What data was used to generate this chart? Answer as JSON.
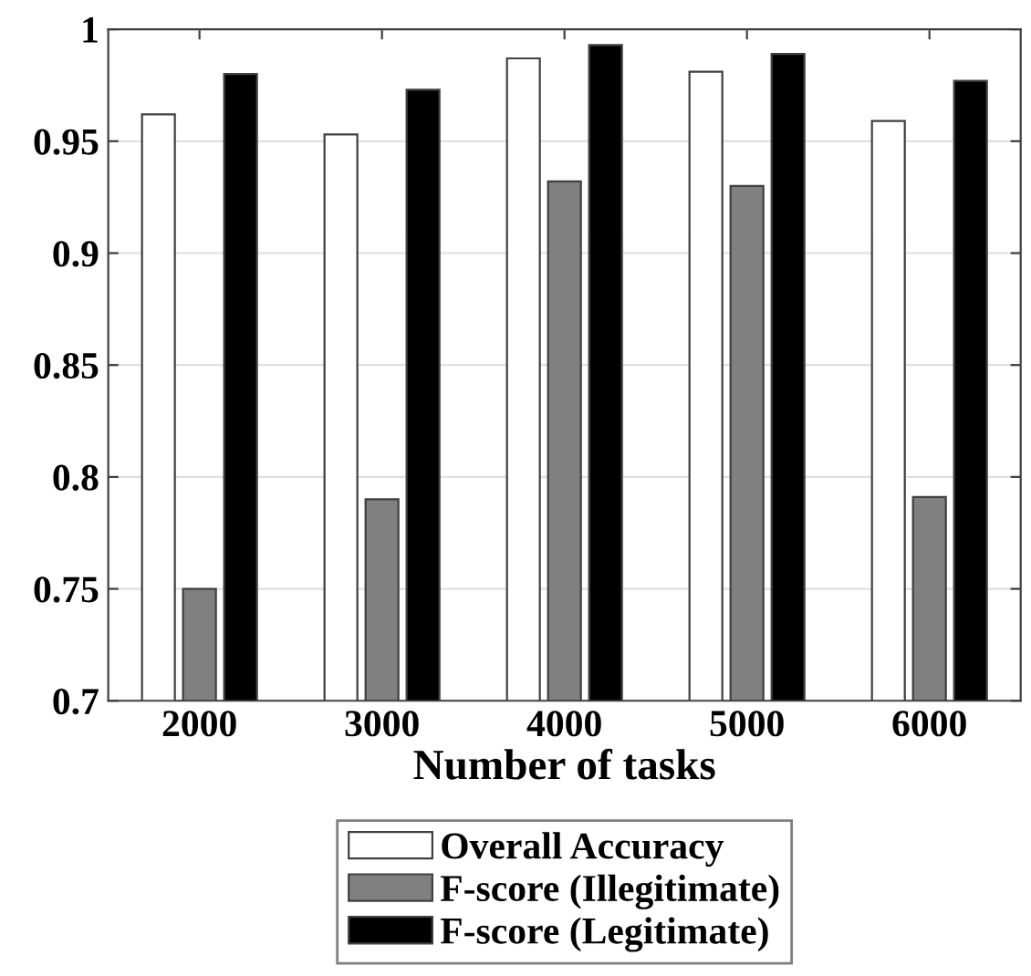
{
  "chart_data": {
    "type": "bar",
    "xlabel": "Number of tasks",
    "categories": [
      "2000",
      "3000",
      "4000",
      "5000",
      "6000"
    ],
    "series": [
      {
        "name": "Overall Accuracy",
        "color": "#ffffff",
        "values": [
          0.962,
          0.953,
          0.987,
          0.981,
          0.959
        ]
      },
      {
        "name": "F-score (Illegitimate)",
        "color": "#808080",
        "values": [
          0.75,
          0.79,
          0.932,
          0.93,
          0.791
        ]
      },
      {
        "name": "F-score (Legitimate)",
        "color": "#000000",
        "values": [
          0.98,
          0.973,
          0.993,
          0.989,
          0.977
        ]
      }
    ],
    "ylim": [
      0.7,
      1
    ],
    "yticks": [
      0.7,
      0.75,
      0.8,
      0.85,
      0.9,
      0.95,
      1
    ],
    "grid": "y",
    "legend": "bottom"
  }
}
